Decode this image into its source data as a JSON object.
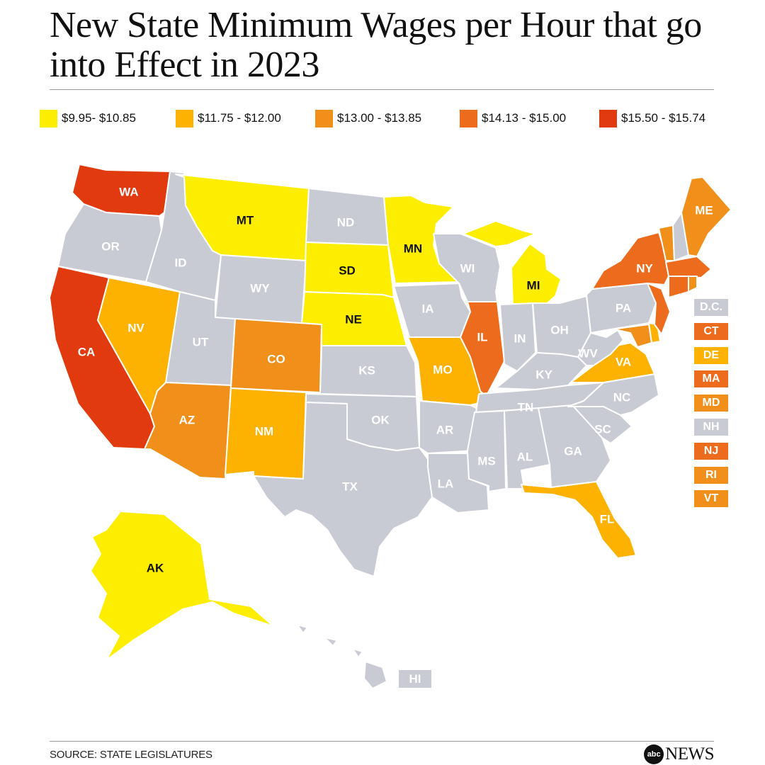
{
  "title": "New State Minimum Wages per Hour that go into Effect in 2023",
  "colors": {
    "tier1": "#fdee00",
    "tier2": "#fdb100",
    "tier3": "#f08f1a",
    "tier4": "#ed6b1c",
    "tier5": "#e03a0e",
    "none": "#c8cad4"
  },
  "legend": [
    {
      "label": "$9.95- $10.85",
      "tier": "tier1"
    },
    {
      "label": "$11.75 - $12.00",
      "tier": "tier2"
    },
    {
      "label": "$13.00 - $13.85",
      "tier": "tier3"
    },
    {
      "label": "$14.13 - $15.00",
      "tier": "tier4"
    },
    {
      "label": "$15.50 - $15.74",
      "tier": "tier5"
    }
  ],
  "states": {
    "WA": "tier5",
    "OR": "none",
    "CA": "tier5",
    "ID": "none",
    "NV": "tier2",
    "MT": "tier1",
    "WY": "none",
    "UT": "none",
    "AZ": "tier3",
    "CO": "tier3",
    "NM": "tier2",
    "ND": "none",
    "SD": "tier1",
    "NE": "tier1",
    "KS": "none",
    "OK": "none",
    "TX": "none",
    "MN": "tier1",
    "IA": "none",
    "MO": "tier2",
    "AR": "none",
    "LA": "none",
    "WI": "none",
    "IL": "tier4",
    "MS": "none",
    "MI": "tier1",
    "IN": "none",
    "OH": "none",
    "KY": "none",
    "TN": "none",
    "AL": "none",
    "GA": "none",
    "FL": "tier2",
    "SC": "none",
    "NC": "none",
    "VA": "tier2",
    "WV": "none",
    "PA": "none",
    "NY": "tier4",
    "ME": "tier3",
    "AK": "tier1",
    "HI": "none",
    "NJ": "tier4",
    "MD": "tier3",
    "DE": "tier2",
    "CT": "tier4",
    "MA": "tier4",
    "RI": "tier3",
    "VT": "tier3",
    "NH": "none"
  },
  "sidebar": [
    {
      "label": "D.C.",
      "tier": "none"
    },
    {
      "label": "CT",
      "tier": "tier4"
    },
    {
      "label": "DE",
      "tier": "tier2"
    },
    {
      "label": "MA",
      "tier": "tier4"
    },
    {
      "label": "MD",
      "tier": "tier3"
    },
    {
      "label": "NH",
      "tier": "none"
    },
    {
      "label": "NJ",
      "tier": "tier4"
    },
    {
      "label": "RI",
      "tier": "tier3"
    },
    {
      "label": "VT",
      "tier": "tier3"
    }
  ],
  "hi_label": "HI",
  "source": "SOURCE: STATE LEGISLATURES",
  "brand": {
    "logo": "abc",
    "name": "NEWS"
  }
}
